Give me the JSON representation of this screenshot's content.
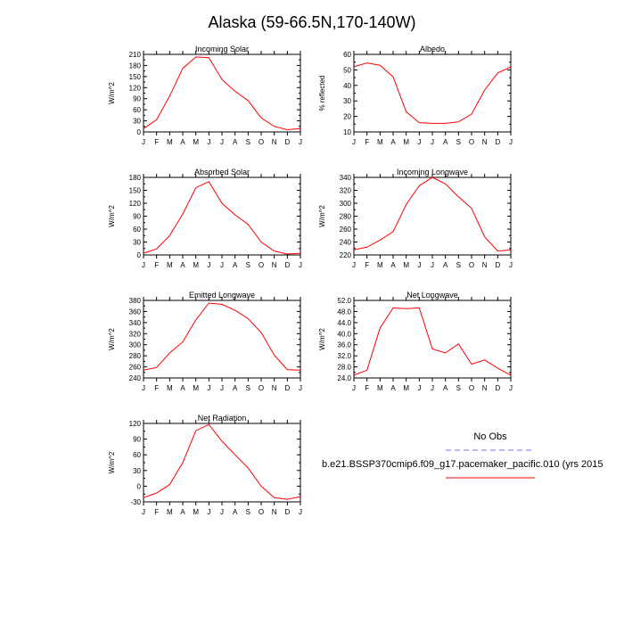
{
  "title": "Alaska (59-66.5N,170-140W)",
  "months": [
    "J",
    "F",
    "M",
    "A",
    "M",
    "J",
    "J",
    "A",
    "S",
    "O",
    "N",
    "D",
    "J"
  ],
  "legend": {
    "obs_label": "No Obs",
    "obs_color": "#7777ee",
    "model_label": "b.e21.BSSP370cmip6.f09_g17.pacemaker_pacific.010 (yrs 2015",
    "model_color": "#ff0000"
  },
  "chart_data": [
    {
      "type": "line",
      "title": "Incoming Solar",
      "ylabel": "W/m^2",
      "ylim": [
        0,
        210
      ],
      "yticks": [
        "0",
        "30",
        "60",
        "90",
        "120",
        "150",
        "180",
        "210"
      ],
      "categories": [
        "J",
        "F",
        "M",
        "A",
        "M",
        "J",
        "J",
        "A",
        "S",
        "O",
        "N",
        "D",
        "J"
      ],
      "values": [
        9,
        33,
        97,
        172,
        203,
        201,
        142,
        110,
        85,
        38,
        15,
        6,
        9
      ]
    },
    {
      "type": "line",
      "title": "Albedo",
      "ylabel": "% reflected",
      "ylim": [
        10,
        60
      ],
      "yticks": [
        "10",
        "20",
        "30",
        "40",
        "50",
        "60"
      ],
      "categories": [
        "J",
        "F",
        "M",
        "A",
        "M",
        "J",
        "J",
        "A",
        "S",
        "O",
        "N",
        "D",
        "J"
      ],
      "values": [
        52,
        54.5,
        53,
        45.5,
        23,
        16,
        15.5,
        15.5,
        16.5,
        21.5,
        37,
        48,
        52
      ]
    },
    {
      "type": "line",
      "title": "Absorbed Solar",
      "ylabel": "W/m^2",
      "ylim": [
        0,
        180
      ],
      "yticks": [
        "0",
        "30",
        "60",
        "90",
        "120",
        "150",
        "180"
      ],
      "categories": [
        "J",
        "F",
        "M",
        "A",
        "M",
        "J",
        "J",
        "A",
        "S",
        "O",
        "N",
        "D",
        "J"
      ],
      "values": [
        4,
        14,
        45,
        95,
        156,
        170,
        120,
        93,
        71,
        30,
        9,
        2,
        4
      ]
    },
    {
      "type": "line",
      "title": "Incoming Longwave",
      "ylabel": "W/m^2",
      "ylim": [
        220,
        340
      ],
      "yticks": [
        "220",
        "240",
        "260",
        "280",
        "300",
        "320",
        "340"
      ],
      "categories": [
        "J",
        "F",
        "M",
        "A",
        "M",
        "J",
        "J",
        "A",
        "S",
        "O",
        "N",
        "D",
        "J"
      ],
      "values": [
        228,
        232,
        243,
        256,
        298,
        327,
        340,
        330,
        310,
        292,
        248,
        226,
        228
      ]
    },
    {
      "type": "line",
      "title": "Emitted Longwave",
      "ylabel": "W/m^2",
      "ylim": [
        240,
        380
      ],
      "yticks": [
        "240",
        "260",
        "280",
        "300",
        "320",
        "340",
        "360",
        "380"
      ],
      "categories": [
        "J",
        "F",
        "M",
        "A",
        "M",
        "J",
        "J",
        "A",
        "S",
        "O",
        "N",
        "D",
        "J"
      ],
      "values": [
        254,
        259,
        285,
        305,
        345,
        375,
        373,
        362,
        347,
        322,
        281,
        255,
        254
      ]
    },
    {
      "type": "line",
      "title": "Net Longwave",
      "ylabel": "W/m^2",
      "ylim": [
        24,
        52
      ],
      "yticks": [
        "24.0",
        "28.0",
        "32.0",
        "36.0",
        "40.0",
        "44.0",
        "48.0",
        "52.0"
      ],
      "categories": [
        "J",
        "F",
        "M",
        "A",
        "M",
        "J",
        "J",
        "A",
        "S",
        "O",
        "N",
        "D",
        "J"
      ],
      "values": [
        25,
        26.8,
        42,
        49.3,
        49,
        49.3,
        34.5,
        33,
        36.3,
        29,
        30.5,
        27.5,
        25
      ]
    },
    {
      "type": "line",
      "title": "Net Radiation",
      "ylabel": "W/m^2",
      "ylim": [
        -30,
        120
      ],
      "yticks": [
        "-30",
        "0",
        "30",
        "60",
        "90",
        "120"
      ],
      "categories": [
        "J",
        "F",
        "M",
        "A",
        "M",
        "J",
        "J",
        "A",
        "S",
        "O",
        "N",
        "D",
        "J"
      ],
      "values": [
        -22,
        -13,
        3,
        45,
        106,
        118,
        86,
        60,
        35,
        0,
        -22,
        -25,
        -20
      ]
    }
  ]
}
